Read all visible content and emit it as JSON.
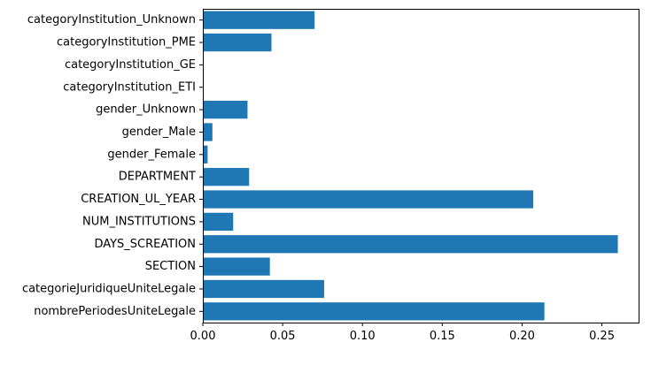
{
  "chart_data": {
    "type": "bar",
    "orientation": "horizontal",
    "title": "",
    "xlabel": "",
    "ylabel": "",
    "categories": [
      "nombrePeriodesUniteLegale",
      "categorieJuridiqueUniteLegale",
      "SECTION",
      "DAYS_SCREATION",
      "NUM_INSTITUTIONS",
      "CREATION_UL_YEAR",
      "DEPARTMENT",
      "gender_Female",
      "gender_Male",
      "gender_Unknown",
      "categoryInstitution_ETI",
      "categoryInstitution_GE",
      "categoryInstitution_PME",
      "categoryInstitution_Unknown"
    ],
    "values": [
      0.214,
      0.076,
      0.042,
      0.26,
      0.019,
      0.207,
      0.029,
      0.003,
      0.006,
      0.028,
      0.0,
      0.0,
      0.043,
      0.07
    ],
    "xlim": [
      0,
      0.273
    ],
    "xticks": [
      "0.00",
      "0.05",
      "0.10",
      "0.15",
      "0.20",
      "0.25"
    ],
    "grid": false,
    "bar_color": "#1f77b4"
  }
}
